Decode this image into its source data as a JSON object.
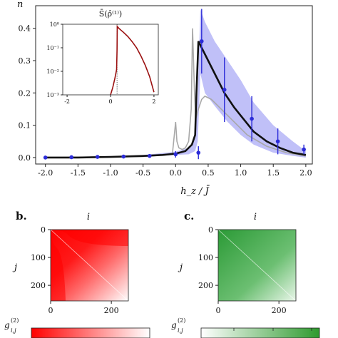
{
  "main": {
    "ylabel": "n",
    "xlabel": "h_z / J̄",
    "xticks": [
      "-2.0",
      "-1.5",
      "-1.0",
      "-0.5",
      "0.0",
      "0.5",
      "1.0",
      "1.5",
      "2.0"
    ],
    "yticks": [
      "0.0",
      "0.1",
      "0.2",
      "0.3",
      "0.4"
    ],
    "xlim": [
      -2.15,
      2.1
    ],
    "ylim": [
      -0.02,
      0.47
    ]
  },
  "inset": {
    "title": "S̄(ρ̂⁽¹⁾)",
    "xticks": [
      "-2",
      "0",
      "2"
    ],
    "yticks": [
      "10⁰",
      "10⁻¹",
      "10⁻²",
      "10⁻³"
    ],
    "xlim": [
      -2.2,
      2.2
    ],
    "ylim_log": [
      -3,
      0
    ]
  },
  "panel_b": {
    "label": "b.",
    "title": "i",
    "ylabel": "j",
    "xticks": [
      "0",
      "200"
    ],
    "yticks": [
      "0",
      "100",
      "200"
    ],
    "cbar_label": "g(2) i,j",
    "color": "#ff1010"
  },
  "panel_c": {
    "label": "c.",
    "title": "i",
    "ylabel": "j",
    "xticks": [
      "0",
      "200"
    ],
    "yticks": [
      "0",
      "100",
      "200"
    ],
    "cbar_label": "g(2) i,j",
    "color": "#2e9a2e"
  },
  "chart_data": [
    {
      "type": "line",
      "series": [
        {
          "style": "black-thick",
          "x": [
            -2.0,
            -1.5,
            -1.0,
            -0.5,
            -0.2,
            0.0,
            0.15,
            0.25,
            0.3,
            0.32,
            0.35,
            0.4,
            0.5,
            0.6,
            0.75,
            0.9,
            1.0,
            1.2,
            1.4,
            1.6,
            1.8,
            2.0
          ],
          "y": [
            0.0,
            0.0,
            0.002,
            0.005,
            0.008,
            0.012,
            0.02,
            0.04,
            0.07,
            0.2,
            0.36,
            0.34,
            0.3,
            0.26,
            0.2,
            0.155,
            0.13,
            0.08,
            0.05,
            0.03,
            0.015,
            0.008
          ]
        },
        {
          "style": "gray",
          "x": [
            -2.0,
            -0.5,
            -0.05,
            0.0,
            0.02,
            0.05,
            0.1,
            0.15,
            0.2,
            0.24,
            0.26,
            0.29,
            0.31,
            0.35,
            0.4,
            0.45,
            0.55,
            0.7,
            0.9,
            1.1,
            1.4,
            1.7,
            2.0
          ],
          "y": [
            0.0,
            0.003,
            0.01,
            0.11,
            0.05,
            0.03,
            0.025,
            0.03,
            0.05,
            0.15,
            0.4,
            0.2,
            0.12,
            0.15,
            0.18,
            0.19,
            0.18,
            0.15,
            0.11,
            0.07,
            0.035,
            0.015,
            0.005
          ]
        },
        {
          "style": "blue-markers",
          "x": [
            -2.0,
            -1.6,
            -1.2,
            -0.8,
            -0.4,
            0.0,
            0.35,
            0.4,
            0.75,
            1.17,
            1.57,
            1.97
          ],
          "y": [
            0.0,
            0.001,
            0.002,
            0.003,
            0.005,
            0.01,
            0.015,
            0.36,
            0.21,
            0.12,
            0.05,
            0.025
          ],
          "yerr": [
            0.0,
            0.0,
            0.0,
            0.0,
            0.005,
            0.01,
            0.02,
            0.1,
            0.1,
            0.07,
            0.04,
            0.015
          ]
        }
      ],
      "band": {
        "x": [
          -2.0,
          -1.0,
          -0.5,
          0.0,
          0.2,
          0.3,
          0.34,
          0.38,
          0.45,
          0.6,
          0.8,
          1.0,
          1.2,
          1.5,
          1.8,
          2.0
        ],
        "upper": [
          0.0,
          0.003,
          0.008,
          0.018,
          0.03,
          0.06,
          0.2,
          0.46,
          0.42,
          0.36,
          0.3,
          0.24,
          0.17,
          0.1,
          0.05,
          0.02
        ],
        "lower": [
          0.0,
          0.001,
          0.003,
          0.008,
          0.01,
          0.02,
          0.05,
          0.26,
          0.2,
          0.16,
          0.11,
          0.07,
          0.04,
          0.015,
          0.005,
          0.0
        ]
      }
    },
    {
      "type": "line",
      "scale": "log-y",
      "x": [
        0.0,
        0.1,
        0.2,
        0.28,
        0.3,
        0.31,
        0.4,
        0.6,
        0.8,
        1.0,
        1.2,
        1.4,
        1.6,
        1.8,
        2.0
      ],
      "y": [
        0.001,
        0.002,
        0.005,
        0.012,
        0.08,
        0.8,
        0.65,
        0.45,
        0.3,
        0.18,
        0.1,
        0.045,
        0.018,
        0.006,
        0.0013
      ],
      "vline": 0.3
    },
    {
      "type": "heatmap",
      "panel": "b",
      "size": 256,
      "scale": "red"
    },
    {
      "type": "heatmap",
      "panel": "c",
      "size": 256,
      "scale": "green"
    }
  ]
}
